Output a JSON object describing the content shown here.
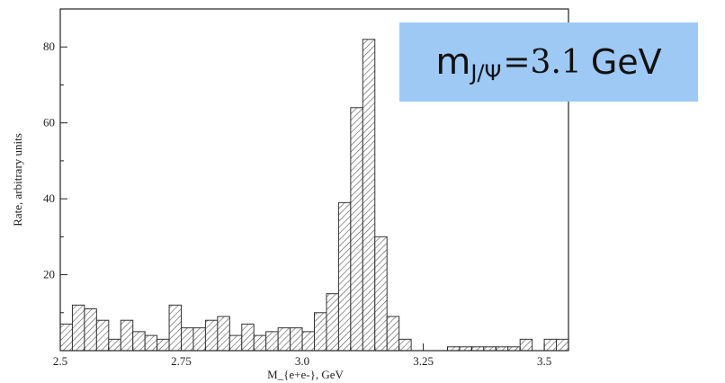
{
  "chart_data": {
    "type": "bar",
    "title": "",
    "xlabel": "M_{e+e-}, GeV",
    "ylabel": "Rate, arbitrary units",
    "xlim": [
      2.5,
      3.55
    ],
    "ylim": [
      0,
      90
    ],
    "bin_width": 0.025,
    "x_ticks": [
      "2.5",
      "2.75",
      "3.0",
      "3.25",
      "3.5"
    ],
    "y_ticks": [
      "20",
      "40",
      "60",
      "80"
    ],
    "bins_start": 2.5,
    "values": [
      7,
      12,
      11,
      8,
      3,
      8,
      5,
      4,
      3,
      12,
      6,
      6,
      8,
      9,
      4,
      7,
      4,
      5,
      6,
      6,
      5,
      10,
      15,
      39,
      64,
      82,
      30,
      9,
      3,
      0,
      0,
      0,
      1,
      1,
      1,
      1,
      1,
      1,
      3,
      0,
      3,
      3
    ],
    "grid": false,
    "legend": "none"
  },
  "annotation": {
    "m": "m",
    "subscript": "J/Ψ",
    "equals_value": "=3.1",
    "unit": "GeV"
  },
  "colors": {
    "annotation_background": "#9ec9f5",
    "bar_edge": "#333333",
    "hatch": "#555555"
  }
}
